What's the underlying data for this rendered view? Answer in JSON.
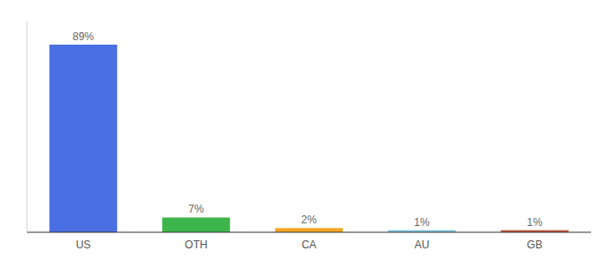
{
  "chart_data": {
    "type": "bar",
    "categories": [
      "US",
      "OTH",
      "CA",
      "AU",
      "GB"
    ],
    "values": [
      89,
      7,
      2,
      1,
      1
    ],
    "value_labels": [
      "89%",
      "7%",
      "2%",
      "1%",
      "1%"
    ],
    "colors": [
      "#4A6FE3",
      "#3CB54A",
      "#F5A623",
      "#7EC8E3",
      "#C0573A"
    ],
    "ylim": [
      0,
      100
    ],
    "grid": false,
    "data_labels": true,
    "tick_labels": "x"
  }
}
